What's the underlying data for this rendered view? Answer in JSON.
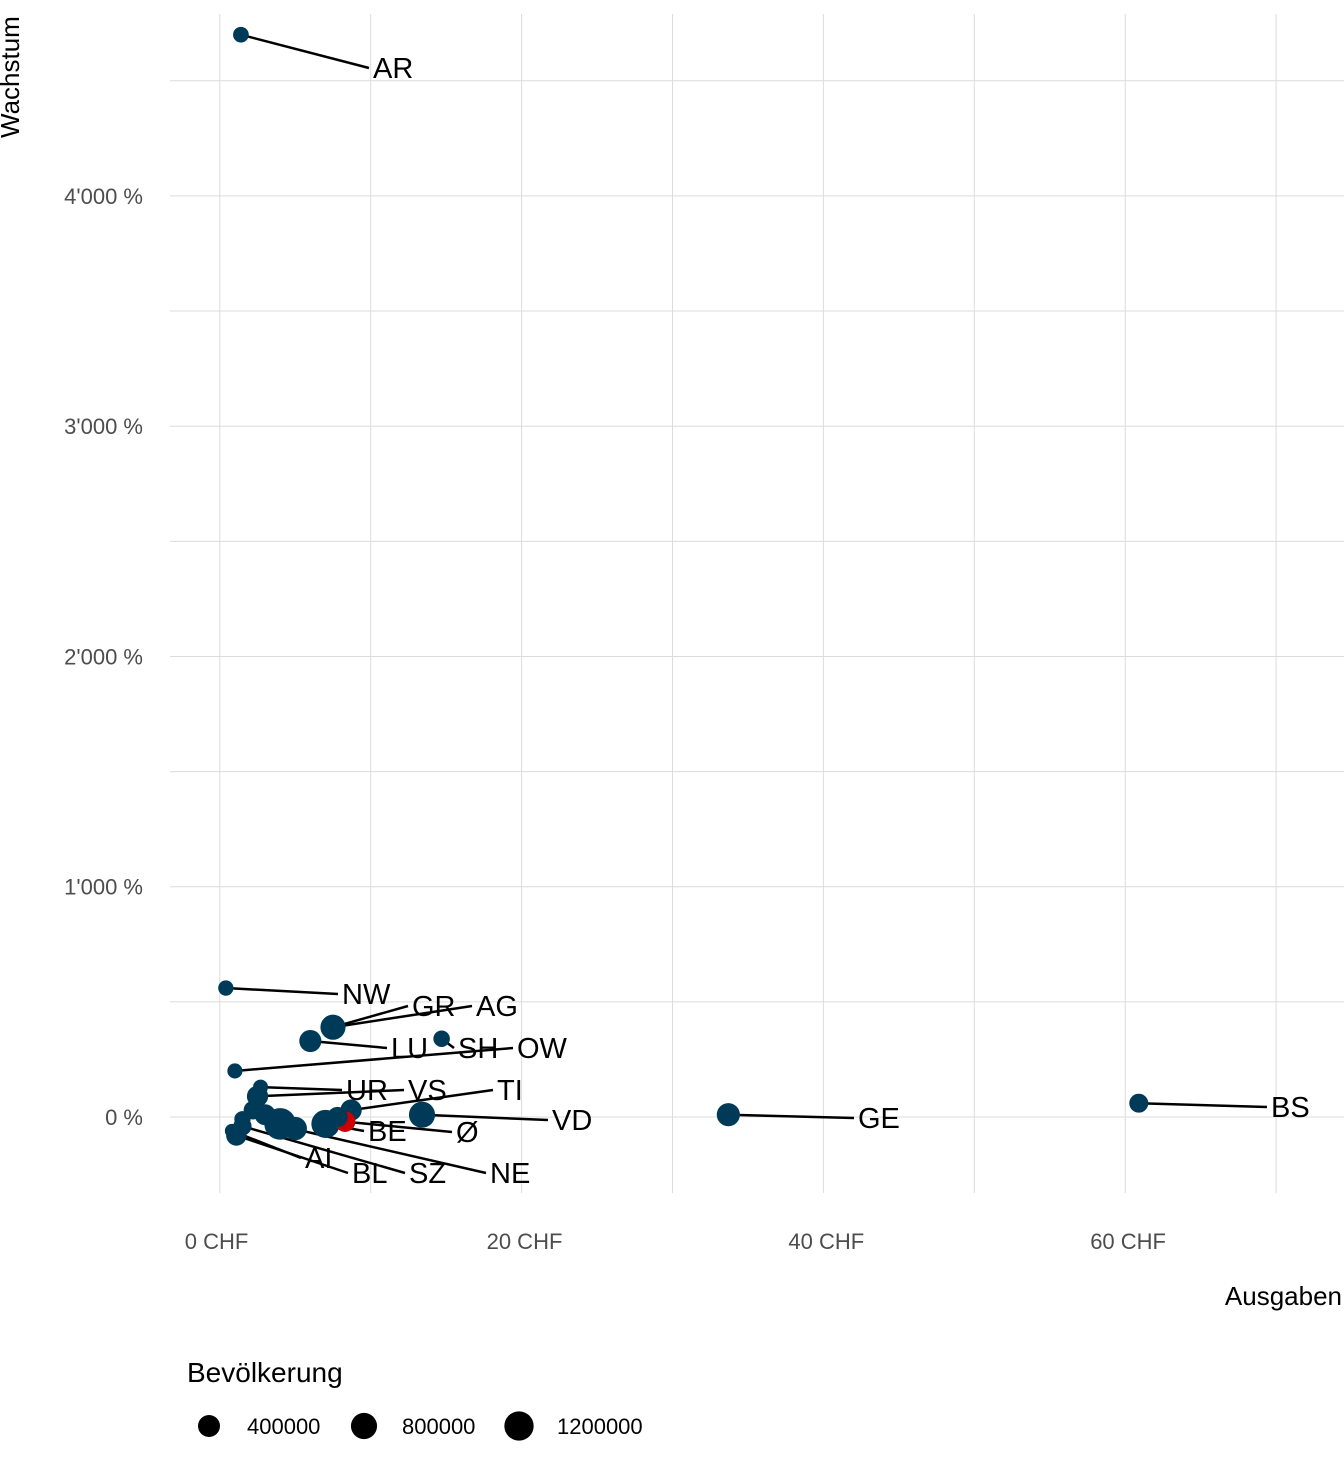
{
  "chart_data": {
    "type": "scatter",
    "xlabel": "Ausgaben",
    "ylabel": "Wachstum",
    "xlim": [
      -3.3,
      74.5
    ],
    "ylim": [
      -3.3,
      47.9
    ],
    "x_ticks": [
      0,
      20,
      40,
      60
    ],
    "x_tick_labels": [
      "0 CHF",
      "20 CHF",
      "40 CHF",
      "60 CHF"
    ],
    "y_ticks": [
      0,
      10,
      20,
      30,
      40
    ],
    "y_tick_labels": [
      "0 %",
      "1'000 %",
      "2'000 %",
      "3'000 %",
      "4'000 %"
    ],
    "grid": true,
    "colors": {
      "point": "#003a59",
      "average": "#cc0000",
      "grid": "#dcdcdc",
      "label_line": "#000000"
    },
    "points": [
      {
        "label": "AR",
        "x": 1.4,
        "y": 47.0,
        "pop": 55000
      },
      {
        "label": "NW",
        "x": 0.4,
        "y": 5.6,
        "pop": 43000
      },
      {
        "label": "GR",
        "x": 7.5,
        "y": 3.9,
        "pop": 200000
      },
      {
        "label": "AG",
        "x": 7.5,
        "y": 3.9,
        "pop": 690000
      },
      {
        "label": "LU",
        "x": 6.0,
        "y": 3.3,
        "pop": 410000
      },
      {
        "label": "SH",
        "x": 14.7,
        "y": 3.4,
        "pop": 82000
      },
      {
        "label": "OW",
        "x": 1.0,
        "y": 2.0,
        "pop": 38000
      },
      {
        "label": "UR",
        "x": 2.7,
        "y": 1.3,
        "pop": 36000
      },
      {
        "label": "VS",
        "x": 2.5,
        "y": 0.9,
        "pop": 345000
      },
      {
        "label": "TI",
        "x": 8.7,
        "y": 0.3,
        "pop": 350000
      },
      {
        "label": "VD",
        "x": 13.4,
        "y": 0.1,
        "pop": 800000
      },
      {
        "label": "GE",
        "x": 33.7,
        "y": 0.1,
        "pop": 500000
      },
      {
        "label": "BS",
        "x": 60.9,
        "y": 0.6,
        "pop": 195000
      },
      {
        "label": "BE",
        "x": 7.0,
        "y": -0.3,
        "pop": 1040000
      },
      {
        "label": "Ø",
        "x": 8.3,
        "y": -0.2,
        "pop": 300000,
        "average": true
      },
      {
        "label": "AI",
        "x": 0.8,
        "y": -0.6,
        "pop": 16000
      },
      {
        "label": "BL",
        "x": 1.1,
        "y": -0.8,
        "pop": 290000
      },
      {
        "label": "SZ",
        "x": 1.5,
        "y": -0.4,
        "pop": 160000
      },
      {
        "label": "NE",
        "x": 4.8,
        "y": -0.5,
        "pop": 175000
      },
      {
        "label": "",
        "x": 4.0,
        "y": -0.3,
        "pop": 1550000
      },
      {
        "label": "",
        "x": 5.0,
        "y": -0.5,
        "pop": 520000
      },
      {
        "label": "",
        "x": 3.0,
        "y": 0.1,
        "pop": 320000
      },
      {
        "label": "",
        "x": 2.2,
        "y": 0.3,
        "pop": 180000
      },
      {
        "label": "",
        "x": 7.2,
        "y": -0.4,
        "pop": 330000
      },
      {
        "label": "",
        "x": 7.8,
        "y": 0.0,
        "pop": 280000
      },
      {
        "label": "",
        "x": 1.5,
        "y": -0.1,
        "pop": 73000
      }
    ],
    "legend": {
      "title": "Bevölkerung",
      "placement": "bottom-left",
      "entries": [
        {
          "label": "400000",
          "value": 400000
        },
        {
          "label": "800000",
          "value": 800000
        },
        {
          "label": "1200000",
          "value": 1200000
        }
      ]
    }
  }
}
